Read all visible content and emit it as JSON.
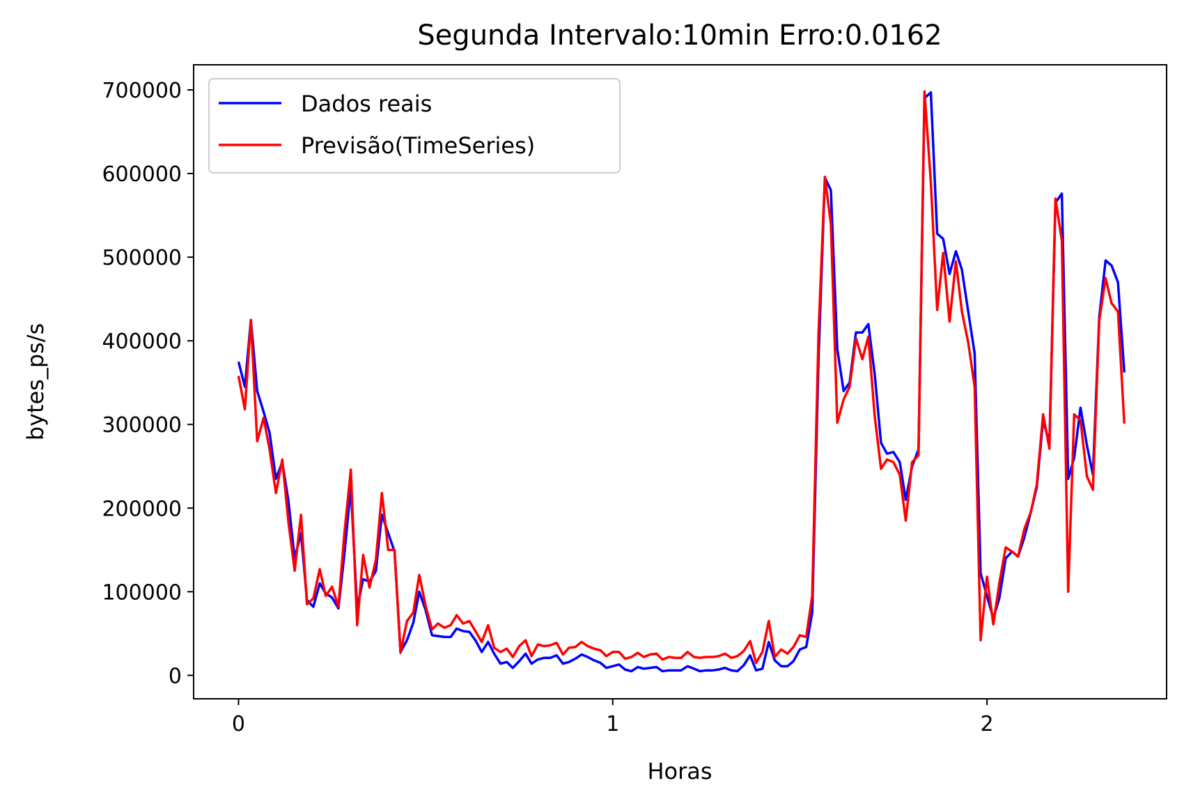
{
  "chart_data": {
    "type": "line",
    "title": "Segunda Intervalo:10min Erro:0.0162",
    "xlabel": "Horas",
    "ylabel": "bytes_ps/s",
    "xlim": [
      -0.12,
      2.48
    ],
    "ylim": [
      -28000,
      730000
    ],
    "x_ticks": [
      0,
      1,
      2
    ],
    "x_tick_labels": [
      "0",
      "1",
      "2"
    ],
    "y_ticks": [
      0,
      100000,
      200000,
      300000,
      400000,
      500000,
      600000,
      700000
    ],
    "y_tick_labels": [
      "0",
      "100000",
      "200000",
      "300000",
      "400000",
      "500000",
      "600000",
      "700000"
    ],
    "grid": false,
    "legend_position": "top-left",
    "series": [
      {
        "name": "Dados reais",
        "color": "#0000ff",
        "points": [
          [
            0.0,
            375000
          ],
          [
            0.017,
            345000
          ],
          [
            0.033,
            425000
          ],
          [
            0.05,
            340000
          ],
          [
            0.067,
            315000
          ],
          [
            0.083,
            290000
          ],
          [
            0.1,
            235000
          ],
          [
            0.117,
            255000
          ],
          [
            0.133,
            210000
          ],
          [
            0.15,
            140000
          ],
          [
            0.167,
            170000
          ],
          [
            0.183,
            90000
          ],
          [
            0.2,
            82000
          ],
          [
            0.217,
            110000
          ],
          [
            0.233,
            98000
          ],
          [
            0.25,
            93000
          ],
          [
            0.267,
            80000
          ],
          [
            0.283,
            145000
          ],
          [
            0.3,
            225000
          ],
          [
            0.317,
            80000
          ],
          [
            0.333,
            115000
          ],
          [
            0.35,
            112000
          ],
          [
            0.367,
            125000
          ],
          [
            0.383,
            192000
          ],
          [
            0.4,
            170000
          ],
          [
            0.417,
            148000
          ],
          [
            0.433,
            28000
          ],
          [
            0.45,
            42000
          ],
          [
            0.467,
            63000
          ],
          [
            0.483,
            100000
          ],
          [
            0.5,
            78000
          ],
          [
            0.517,
            48000
          ],
          [
            0.533,
            47000
          ],
          [
            0.55,
            46000
          ],
          [
            0.567,
            46000
          ],
          [
            0.583,
            56000
          ],
          [
            0.6,
            53000
          ],
          [
            0.617,
            52000
          ],
          [
            0.633,
            42000
          ],
          [
            0.65,
            28000
          ],
          [
            0.667,
            40000
          ],
          [
            0.683,
            26000
          ],
          [
            0.7,
            14000
          ],
          [
            0.717,
            16000
          ],
          [
            0.733,
            9000
          ],
          [
            0.75,
            17000
          ],
          [
            0.767,
            26000
          ],
          [
            0.783,
            14000
          ],
          [
            0.8,
            19000
          ],
          [
            0.817,
            21000
          ],
          [
            0.833,
            21000
          ],
          [
            0.85,
            24000
          ],
          [
            0.867,
            14000
          ],
          [
            0.883,
            16000
          ],
          [
            0.9,
            20000
          ],
          [
            0.917,
            25000
          ],
          [
            0.933,
            22000
          ],
          [
            0.95,
            18000
          ],
          [
            0.967,
            15000
          ],
          [
            0.983,
            9000
          ],
          [
            1.0,
            11000
          ],
          [
            1.017,
            13000
          ],
          [
            1.033,
            7000
          ],
          [
            1.05,
            5000
          ],
          [
            1.067,
            10000
          ],
          [
            1.083,
            8000
          ],
          [
            1.1,
            9000
          ],
          [
            1.117,
            10000
          ],
          [
            1.133,
            5000
          ],
          [
            1.15,
            6000
          ],
          [
            1.167,
            6000
          ],
          [
            1.183,
            6000
          ],
          [
            1.2,
            11000
          ],
          [
            1.217,
            8000
          ],
          [
            1.233,
            5000
          ],
          [
            1.25,
            6000
          ],
          [
            1.267,
            6000
          ],
          [
            1.283,
            7000
          ],
          [
            1.3,
            9000
          ],
          [
            1.317,
            6000
          ],
          [
            1.333,
            5000
          ],
          [
            1.35,
            12000
          ],
          [
            1.367,
            24000
          ],
          [
            1.383,
            6000
          ],
          [
            1.4,
            8000
          ],
          [
            1.417,
            40000
          ],
          [
            1.433,
            18000
          ],
          [
            1.45,
            11000
          ],
          [
            1.467,
            11000
          ],
          [
            1.483,
            17000
          ],
          [
            1.5,
            31000
          ],
          [
            1.517,
            34000
          ],
          [
            1.533,
            75000
          ],
          [
            1.55,
            380000
          ],
          [
            1.567,
            595000
          ],
          [
            1.583,
            580000
          ],
          [
            1.6,
            390000
          ],
          [
            1.617,
            340000
          ],
          [
            1.633,
            350000
          ],
          [
            1.65,
            410000
          ],
          [
            1.667,
            410000
          ],
          [
            1.683,
            420000
          ],
          [
            1.7,
            360000
          ],
          [
            1.717,
            278000
          ],
          [
            1.733,
            265000
          ],
          [
            1.75,
            267000
          ],
          [
            1.767,
            255000
          ],
          [
            1.783,
            210000
          ],
          [
            1.8,
            250000
          ],
          [
            1.817,
            270000
          ],
          [
            1.833,
            690000
          ],
          [
            1.85,
            697000
          ],
          [
            1.867,
            528000
          ],
          [
            1.883,
            522000
          ],
          [
            1.9,
            480000
          ],
          [
            1.917,
            507000
          ],
          [
            1.933,
            485000
          ],
          [
            1.95,
            435000
          ],
          [
            1.967,
            385000
          ],
          [
            1.983,
            122000
          ],
          [
            2.0,
            95000
          ],
          [
            2.017,
            68000
          ],
          [
            2.033,
            92000
          ],
          [
            2.05,
            140000
          ],
          [
            2.067,
            148000
          ],
          [
            2.083,
            142000
          ],
          [
            2.1,
            165000
          ],
          [
            2.117,
            195000
          ],
          [
            2.133,
            225000
          ],
          [
            2.15,
            305000
          ],
          [
            2.167,
            278000
          ],
          [
            2.183,
            565000
          ],
          [
            2.2,
            576000
          ],
          [
            2.217,
            235000
          ],
          [
            2.233,
            260000
          ],
          [
            2.25,
            320000
          ],
          [
            2.267,
            275000
          ],
          [
            2.283,
            240000
          ],
          [
            2.3,
            428000
          ],
          [
            2.317,
            496000
          ],
          [
            2.333,
            490000
          ],
          [
            2.35,
            470000
          ],
          [
            2.367,
            362000
          ]
        ]
      },
      {
        "name": "Previsão(TimeSeries)",
        "color": "#ff0000",
        "points": [
          [
            0.0,
            358000
          ],
          [
            0.017,
            318000
          ],
          [
            0.033,
            425000
          ],
          [
            0.05,
            280000
          ],
          [
            0.067,
            308000
          ],
          [
            0.083,
            270000
          ],
          [
            0.1,
            218000
          ],
          [
            0.117,
            258000
          ],
          [
            0.133,
            185000
          ],
          [
            0.15,
            125000
          ],
          [
            0.167,
            192000
          ],
          [
            0.183,
            85000
          ],
          [
            0.2,
            92000
          ],
          [
            0.217,
            127000
          ],
          [
            0.233,
            95000
          ],
          [
            0.25,
            106000
          ],
          [
            0.267,
            82000
          ],
          [
            0.283,
            170000
          ],
          [
            0.3,
            246000
          ],
          [
            0.317,
            60000
          ],
          [
            0.333,
            144000
          ],
          [
            0.35,
            105000
          ],
          [
            0.367,
            138000
          ],
          [
            0.383,
            218000
          ],
          [
            0.4,
            150000
          ],
          [
            0.417,
            150000
          ],
          [
            0.433,
            27000
          ],
          [
            0.45,
            65000
          ],
          [
            0.467,
            75000
          ],
          [
            0.483,
            120000
          ],
          [
            0.5,
            83000
          ],
          [
            0.517,
            55000
          ],
          [
            0.533,
            62000
          ],
          [
            0.55,
            57000
          ],
          [
            0.567,
            60000
          ],
          [
            0.583,
            72000
          ],
          [
            0.6,
            62000
          ],
          [
            0.617,
            65000
          ],
          [
            0.633,
            53000
          ],
          [
            0.65,
            40000
          ],
          [
            0.667,
            60000
          ],
          [
            0.683,
            33000
          ],
          [
            0.7,
            28000
          ],
          [
            0.717,
            32000
          ],
          [
            0.733,
            22000
          ],
          [
            0.75,
            35000
          ],
          [
            0.767,
            42000
          ],
          [
            0.783,
            23000
          ],
          [
            0.8,
            37000
          ],
          [
            0.817,
            35000
          ],
          [
            0.833,
            36000
          ],
          [
            0.85,
            39000
          ],
          [
            0.867,
            25000
          ],
          [
            0.883,
            33000
          ],
          [
            0.9,
            34000
          ],
          [
            0.917,
            40000
          ],
          [
            0.933,
            35000
          ],
          [
            0.95,
            32000
          ],
          [
            0.967,
            30000
          ],
          [
            0.983,
            23000
          ],
          [
            1.0,
            28000
          ],
          [
            1.017,
            28000
          ],
          [
            1.033,
            20000
          ],
          [
            1.05,
            22000
          ],
          [
            1.067,
            27000
          ],
          [
            1.083,
            22000
          ],
          [
            1.1,
            25000
          ],
          [
            1.117,
            26000
          ],
          [
            1.133,
            19000
          ],
          [
            1.15,
            22000
          ],
          [
            1.167,
            21000
          ],
          [
            1.183,
            21000
          ],
          [
            1.2,
            28000
          ],
          [
            1.217,
            22000
          ],
          [
            1.233,
            21000
          ],
          [
            1.25,
            22000
          ],
          [
            1.267,
            22000
          ],
          [
            1.283,
            23000
          ],
          [
            1.3,
            26000
          ],
          [
            1.317,
            21000
          ],
          [
            1.333,
            23000
          ],
          [
            1.35,
            29000
          ],
          [
            1.367,
            41000
          ],
          [
            1.383,
            15000
          ],
          [
            1.4,
            28000
          ],
          [
            1.417,
            65000
          ],
          [
            1.433,
            22000
          ],
          [
            1.45,
            31000
          ],
          [
            1.467,
            26000
          ],
          [
            1.483,
            34000
          ],
          [
            1.5,
            48000
          ],
          [
            1.517,
            46000
          ],
          [
            1.533,
            95000
          ],
          [
            1.55,
            410000
          ],
          [
            1.567,
            596000
          ],
          [
            1.583,
            540000
          ],
          [
            1.6,
            302000
          ],
          [
            1.617,
            330000
          ],
          [
            1.633,
            345000
          ],
          [
            1.65,
            403000
          ],
          [
            1.667,
            378000
          ],
          [
            1.683,
            405000
          ],
          [
            1.7,
            310000
          ],
          [
            1.717,
            247000
          ],
          [
            1.733,
            258000
          ],
          [
            1.75,
            255000
          ],
          [
            1.767,
            240000
          ],
          [
            1.783,
            185000
          ],
          [
            1.8,
            255000
          ],
          [
            1.817,
            263000
          ],
          [
            1.833,
            698000
          ],
          [
            1.85,
            590000
          ],
          [
            1.867,
            437000
          ],
          [
            1.883,
            505000
          ],
          [
            1.9,
            423000
          ],
          [
            1.917,
            495000
          ],
          [
            1.933,
            435000
          ],
          [
            1.95,
            398000
          ],
          [
            1.967,
            345000
          ],
          [
            1.983,
            42000
          ],
          [
            2.0,
            118000
          ],
          [
            2.017,
            61000
          ],
          [
            2.033,
            110000
          ],
          [
            2.05,
            153000
          ],
          [
            2.067,
            148000
          ],
          [
            2.083,
            142000
          ],
          [
            2.1,
            175000
          ],
          [
            2.117,
            195000
          ],
          [
            2.133,
            228000
          ],
          [
            2.15,
            312000
          ],
          [
            2.167,
            271000
          ],
          [
            2.183,
            570000
          ],
          [
            2.2,
            520000
          ],
          [
            2.217,
            100000
          ],
          [
            2.233,
            312000
          ],
          [
            2.25,
            305000
          ],
          [
            2.267,
            238000
          ],
          [
            2.283,
            222000
          ],
          [
            2.3,
            424000
          ],
          [
            2.317,
            475000
          ],
          [
            2.333,
            445000
          ],
          [
            2.35,
            435000
          ],
          [
            2.367,
            301000
          ]
        ]
      }
    ]
  }
}
